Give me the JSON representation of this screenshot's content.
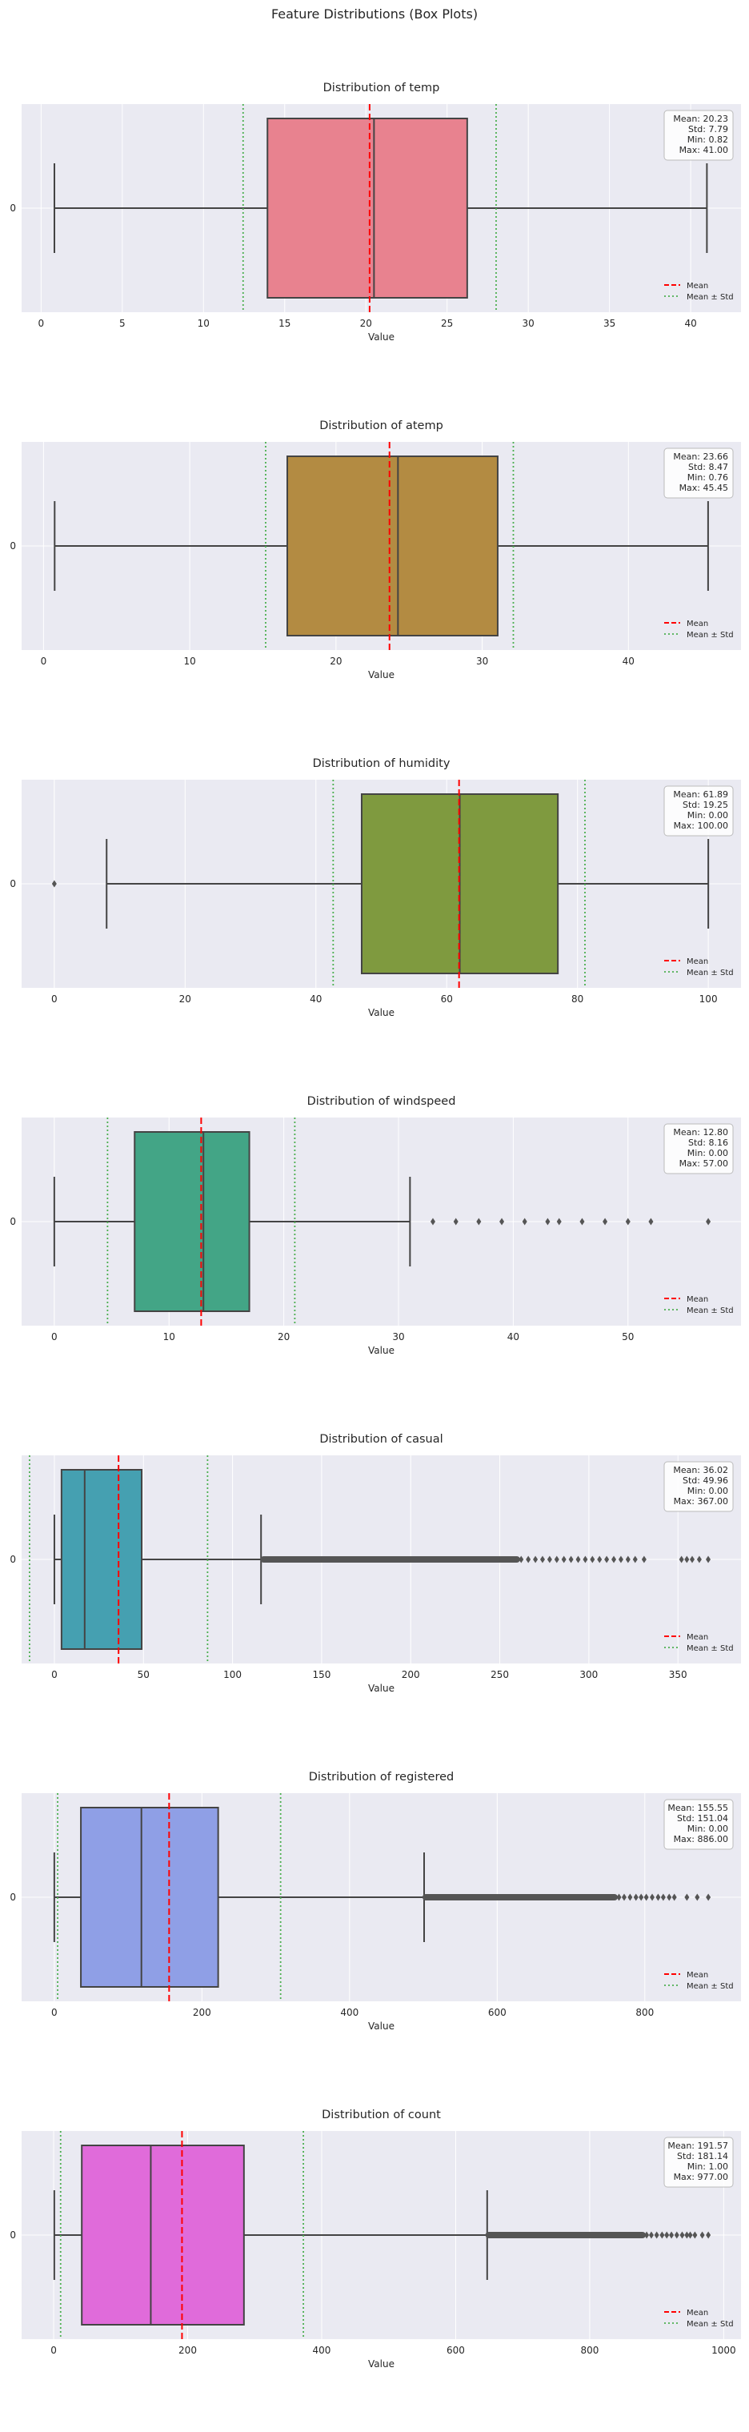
{
  "suptitle": "Feature Distributions (Box Plots)",
  "colors": {
    "axes_bg": "#eaeaf2",
    "grid": "#ffffff",
    "line": "#444444",
    "mean_line": "#ff0000",
    "std_line": "#4caf50",
    "text": "#262626",
    "flier": "#555555"
  },
  "legend_labels": {
    "mean": "Mean",
    "std": "Mean ± Std"
  },
  "chart_data": [
    {
      "type": "box",
      "title": "Distribution of temp",
      "xlabel": "Value",
      "ytick": "0",
      "color": "#e8828f",
      "xlim": [
        -1.2,
        43.1
      ],
      "xticks": [
        0,
        5,
        10,
        15,
        20,
        25,
        30,
        35,
        40
      ],
      "whisker_low": 0.82,
      "q1": 13.94,
      "median": 20.5,
      "q3": 26.24,
      "whisker_high": 41.0,
      "mean": 20.23,
      "std": 7.79,
      "min": 0.82,
      "max": 41.0,
      "fliers": [],
      "stats_text": [
        "Mean: 20.23",
        "Std: 7.79",
        "Min: 0.82",
        "Max: 41.00"
      ],
      "legend": "lower right"
    },
    {
      "type": "box",
      "title": "Distribution of atemp",
      "xlabel": "Value",
      "ytick": "0",
      "color": "#b38b42",
      "xlim": [
        -1.5,
        47.7
      ],
      "xticks": [
        0,
        10,
        20,
        30,
        40
      ],
      "whisker_low": 0.76,
      "q1": 16.67,
      "median": 24.24,
      "q3": 31.06,
      "whisker_high": 45.45,
      "mean": 23.66,
      "std": 8.47,
      "min": 0.76,
      "max": 45.45,
      "fliers": [],
      "stats_text": [
        "Mean: 23.66",
        "Std: 8.47",
        "Min: 0.76",
        "Max: 45.45"
      ],
      "legend": "lower right"
    },
    {
      "type": "box",
      "title": "Distribution of humidity",
      "xlabel": "Value",
      "ytick": "0",
      "color": "#7f9a3f",
      "xlim": [
        -5,
        105
      ],
      "xticks": [
        0,
        20,
        40,
        60,
        80,
        100
      ],
      "whisker_low": 8,
      "q1": 47,
      "median": 62,
      "q3": 77,
      "whisker_high": 100,
      "mean": 61.89,
      "std": 19.25,
      "min": 0.0,
      "max": 100.0,
      "fliers": [
        0
      ],
      "stats_text": [
        "Mean: 61.89",
        "Std: 19.25",
        "Min: 0.00",
        "Max: 100.00"
      ],
      "legend": "lower right"
    },
    {
      "type": "box",
      "title": "Distribution of windspeed",
      "xlabel": "Value",
      "ytick": "0",
      "color": "#43a586",
      "xlim": [
        -2.85,
        59.85
      ],
      "xticks": [
        0,
        10,
        20,
        30,
        40,
        50
      ],
      "whisker_low": 0,
      "q1": 7.0015,
      "median": 12.998,
      "q3": 16.9979,
      "whisker_high": 31.0009,
      "mean": 12.8,
      "std": 8.16,
      "min": 0.0,
      "max": 57.0,
      "fliers": [
        32.9975,
        35.0008,
        36.9974,
        39.0007,
        40.9973,
        43.0006,
        43.9989,
        46.0022,
        47.9988,
        50.0021,
        51.9987,
        56.9969
      ],
      "stats_text": [
        "Mean: 12.80",
        "Std: 8.16",
        "Min: 0.00",
        "Max: 57.00"
      ],
      "legend": "lower right"
    },
    {
      "type": "box",
      "title": "Distribution of casual",
      "xlabel": "Value",
      "ytick": "0",
      "color": "#45a0b1",
      "xlim": [
        -18.4,
        385.4
      ],
      "xticks": [
        0,
        50,
        100,
        150,
        200,
        250,
        300,
        350
      ],
      "whisker_low": 0,
      "q1": 4,
      "median": 17,
      "q3": 49,
      "whisker_high": 116,
      "mean": 36.02,
      "std": 49.96,
      "min": 0.0,
      "max": 367.0,
      "fliers_dense_range": [
        117,
        260
      ],
      "fliers": [
        262,
        266,
        270,
        274,
        278,
        282,
        286,
        290,
        294,
        298,
        302,
        306,
        310,
        314,
        318,
        322,
        326,
        331,
        352,
        355,
        358,
        362,
        367
      ],
      "stats_text": [
        "Mean: 36.02",
        "Std: 49.96",
        "Min: 0.00",
        "Max: 367.00"
      ],
      "legend": "lower right"
    },
    {
      "type": "box",
      "title": "Distribution of registered",
      "xlabel": "Value",
      "ytick": "0",
      "color": "#8f9fe6",
      "xlim": [
        -44.3,
        930.3
      ],
      "xticks": [
        0,
        200,
        400,
        600,
        800
      ],
      "whisker_low": 0,
      "q1": 36,
      "median": 118,
      "q3": 222,
      "whisker_high": 501,
      "mean": 155.55,
      "std": 151.04,
      "min": 0.0,
      "max": 886.0,
      "fliers_dense_range": [
        502,
        760
      ],
      "fliers": [
        765,
        772,
        780,
        788,
        795,
        802,
        810,
        818,
        825,
        833,
        840,
        857,
        871,
        886
      ],
      "stats_text": [
        "Mean: 155.55",
        "Std: 151.04",
        "Min: 0.00",
        "Max: 886.00"
      ],
      "legend": "lower right"
    },
    {
      "type": "box",
      "title": "Distribution of count",
      "xlabel": "Value",
      "ytick": "0",
      "color": "#e06bda",
      "xlim": [
        -47.8,
        1025.8
      ],
      "xticks": [
        0,
        200,
        400,
        600,
        800,
        1000
      ],
      "whisker_low": 1,
      "q1": 42,
      "median": 145,
      "q3": 284,
      "whisker_high": 647,
      "mean": 191.57,
      "std": 181.14,
      "min": 1.0,
      "max": 977.0,
      "fliers_dense_range": [
        648,
        880
      ],
      "fliers": [
        885,
        892,
        900,
        908,
        915,
        922,
        930,
        938,
        945,
        950,
        957,
        968,
        977
      ],
      "stats_text": [
        "Mean: 191.57",
        "Std: 181.14",
        "Min: 1.00",
        "Max: 977.00"
      ],
      "legend": "lower right"
    }
  ]
}
